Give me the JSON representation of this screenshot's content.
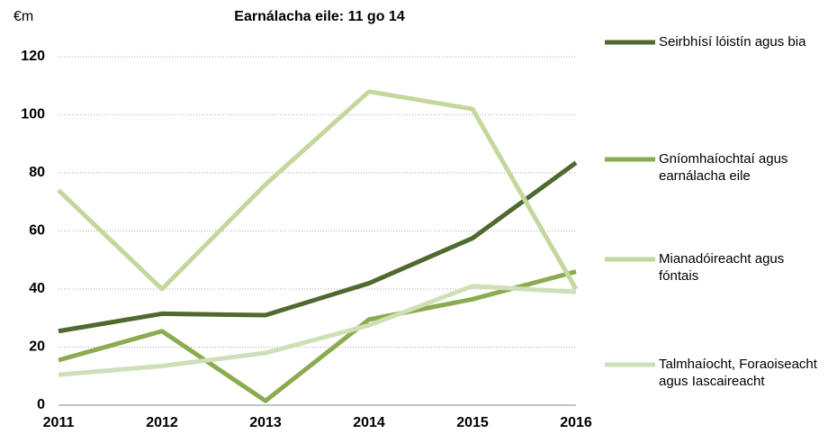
{
  "chart_data": {
    "type": "line",
    "title": "Earnálacha eile: 11 go 14",
    "y_unit": "€m",
    "categories": [
      "2011",
      "2012",
      "2013",
      "2014",
      "2015",
      "2016"
    ],
    "series": [
      {
        "name": "Seirbhísí lóistín agus bia",
        "color": "#4f6a2e",
        "values": [
          25.5,
          31.5,
          31,
          42,
          57.5,
          83.5
        ]
      },
      {
        "name": "Gníomhaíochtaí agus earnálacha eile",
        "color": "#8bab4f",
        "values": [
          15.5,
          25.5,
          1.5,
          29.5,
          36.5,
          46
        ]
      },
      {
        "name": "Mianadóireacht agus fóntais",
        "color": "#c4d79c",
        "values": [
          74,
          40,
          76,
          108,
          102,
          40
        ]
      },
      {
        "name": "Talmhaíocht, Foraoiseacht agus Iascaireacht",
        "color": "#cfdfb8",
        "values": [
          10.5,
          13.5,
          18,
          27.5,
          41,
          39
        ]
      }
    ],
    "ylim": [
      0,
      120
    ],
    "yticks": [
      0,
      20,
      40,
      60,
      80,
      100,
      120
    ],
    "grid": true,
    "legend": "right"
  }
}
